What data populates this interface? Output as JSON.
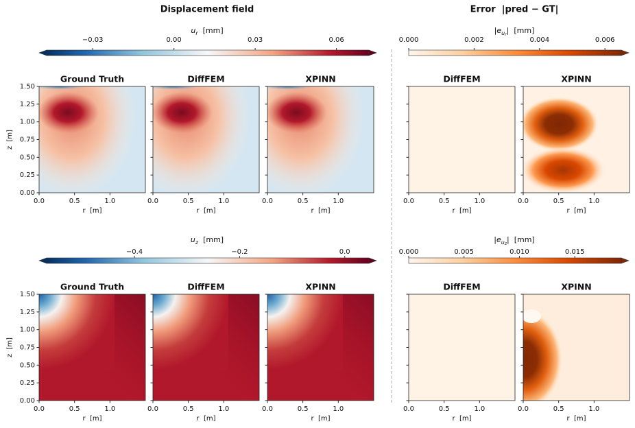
{
  "titles": [
    "Displacement field",
    "Error  |pred − GT|"
  ],
  "axes": {
    "xlabel": "r  [m]",
    "ylabel": "z  [m]",
    "xlim": [
      0,
      1.5
    ],
    "ylim": [
      0,
      1.5
    ],
    "xticks": [
      {
        "value": 0,
        "label": "0.0"
      },
      0.5,
      {
        "value": 1,
        "label": "1.0"
      }
    ],
    "yticks": [
      {
        "value": 0,
        "label": "0.00"
      },
      0.25,
      {
        "value": 0.5,
        "label": "0.50"
      },
      0.75,
      {
        "value": 1,
        "label": "1.00"
      },
      1.25,
      {
        "value": 1.5,
        "label": "1.50"
      }
    ]
  },
  "rows": [
    {
      "field": {
        "symbol": "u",
        "sub": "r",
        "unit": "  [mm]",
        "vlim": [
          -0.047,
          0.072
        ],
        "colormap": "RdBu_r",
        "extend": "both",
        "ticks": [
          {
            "value": -0.03,
            "label": "−0.03"
          },
          {
            "value": 0,
            "label": "0.00"
          },
          0.03,
          0.06
        ]
      },
      "error": {
        "pre": "|",
        "symbol": "e",
        "sub": "u",
        "subsub": "r",
        "unit": "|  [mm]",
        "vlim": [
          0,
          0.0065
        ],
        "colormap": "Oranges",
        "extend": "max",
        "ticks": [
          {
            "value": 0,
            "label": "0.000"
          },
          0.002,
          0.004,
          0.006
        ]
      },
      "panels": [
        "Ground Truth",
        "DiffFEM",
        "XPINN",
        "DiffFEM",
        "XPINN"
      ]
    },
    {
      "field": {
        "symbol": "u",
        "sub": "z",
        "unit": "  [mm]",
        "vlim": [
          -0.567,
          0.046
        ],
        "colormap": "RdBu_r",
        "extend": "both",
        "ticks": [
          {
            "value": -0.4,
            "label": "−0.4"
          },
          {
            "value": -0.2,
            "label": "−0.2"
          },
          {
            "value": 0,
            "label": "0.0"
          }
        ]
      },
      "error": {
        "pre": "|",
        "symbol": "e",
        "sub": "u",
        "subsub": "z",
        "unit": "|  [mm]",
        "vlim": [
          0,
          0.0192
        ],
        "colormap": "Oranges",
        "extend": "max",
        "ticks": [
          {
            "value": 0,
            "label": "0.000"
          },
          0.005,
          {
            "value": 0.01,
            "label": "0.010"
          },
          0.015
        ]
      },
      "panels": [
        "Ground Truth",
        "DiffFEM",
        "XPINN",
        "DiffFEM",
        "XPINN"
      ]
    }
  ]
}
